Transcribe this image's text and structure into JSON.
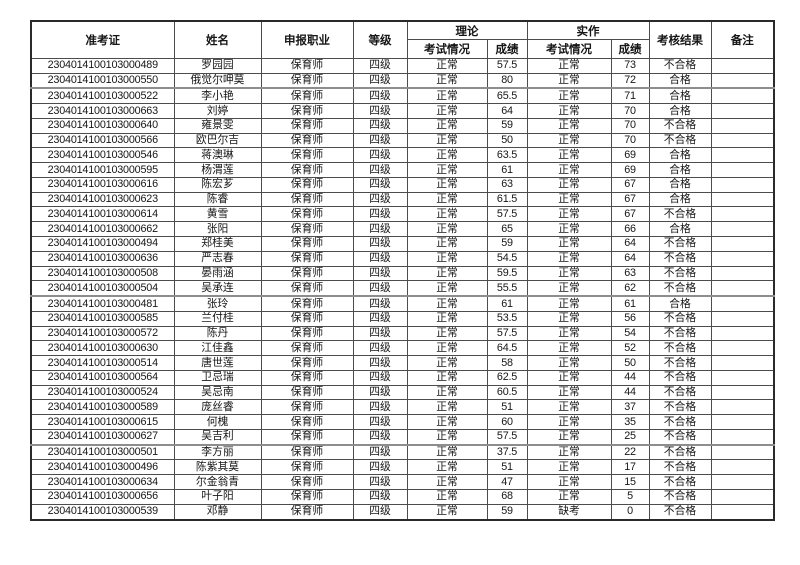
{
  "table": {
    "headers": {
      "admission_no": "准考证",
      "name": "姓名",
      "occupation": "申报职业",
      "level": "等级",
      "theory": "理论",
      "practical": "实作",
      "exam_status": "考试情况",
      "score": "成绩",
      "result": "考核结果",
      "remark": "备注"
    },
    "rows": [
      [
        "2304014100103000489",
        "罗园园",
        "保育师",
        "四级",
        "正常",
        "57.5",
        "正常",
        "73",
        "不合格",
        ""
      ],
      [
        "2304014100103000550",
        "俄觉尔呷莫",
        "保育师",
        "四级",
        "正常",
        "80",
        "正常",
        "72",
        "合格",
        ""
      ],
      [
        "2304014100103000522",
        "李小艳",
        "保育师",
        "四级",
        "正常",
        "65.5",
        "正常",
        "71",
        "合格",
        ""
      ],
      [
        "2304014100103000663",
        "刘婷",
        "保育师",
        "四级",
        "正常",
        "64",
        "正常",
        "70",
        "合格",
        ""
      ],
      [
        "2304014100103000640",
        "雍景雯",
        "保育师",
        "四级",
        "正常",
        "59",
        "正常",
        "70",
        "不合格",
        ""
      ],
      [
        "2304014100103000566",
        "欧巴尔吉",
        "保育师",
        "四级",
        "正常",
        "50",
        "正常",
        "70",
        "不合格",
        ""
      ],
      [
        "2304014100103000546",
        "蒋澳琳",
        "保育师",
        "四级",
        "正常",
        "63.5",
        "正常",
        "69",
        "合格",
        ""
      ],
      [
        "2304014100103000595",
        "杨渭莲",
        "保育师",
        "四级",
        "正常",
        "61",
        "正常",
        "69",
        "合格",
        ""
      ],
      [
        "2304014100103000616",
        "陈宏芗",
        "保育师",
        "四级",
        "正常",
        "63",
        "正常",
        "67",
        "合格",
        ""
      ],
      [
        "2304014100103000623",
        "陈睿",
        "保育师",
        "四级",
        "正常",
        "61.5",
        "正常",
        "67",
        "合格",
        ""
      ],
      [
        "2304014100103000614",
        "黄雪",
        "保育师",
        "四级",
        "正常",
        "57.5",
        "正常",
        "67",
        "不合格",
        ""
      ],
      [
        "2304014100103000662",
        "张阳",
        "保育师",
        "四级",
        "正常",
        "65",
        "正常",
        "66",
        "合格",
        ""
      ],
      [
        "2304014100103000494",
        "郑桂美",
        "保育师",
        "四级",
        "正常",
        "59",
        "正常",
        "64",
        "不合格",
        ""
      ],
      [
        "2304014100103000636",
        "严志春",
        "保育师",
        "四级",
        "正常",
        "54.5",
        "正常",
        "64",
        "不合格",
        ""
      ],
      [
        "2304014100103000508",
        "晏雨涵",
        "保育师",
        "四级",
        "正常",
        "59.5",
        "正常",
        "63",
        "不合格",
        ""
      ],
      [
        "2304014100103000504",
        "吴承连",
        "保育师",
        "四级",
        "正常",
        "55.5",
        "正常",
        "62",
        "不合格",
        ""
      ],
      [
        "2304014100103000481",
        "张玲",
        "保育师",
        "四级",
        "正常",
        "61",
        "正常",
        "61",
        "合格",
        ""
      ],
      [
        "2304014100103000585",
        "兰付桂",
        "保育师",
        "四级",
        "正常",
        "53.5",
        "正常",
        "56",
        "不合格",
        ""
      ],
      [
        "2304014100103000572",
        "陈丹",
        "保育师",
        "四级",
        "正常",
        "57.5",
        "正常",
        "54",
        "不合格",
        ""
      ],
      [
        "2304014100103000630",
        "江佳鑫",
        "保育师",
        "四级",
        "正常",
        "64.5",
        "正常",
        "52",
        "不合格",
        ""
      ],
      [
        "2304014100103000514",
        "唐世莲",
        "保育师",
        "四级",
        "正常",
        "58",
        "正常",
        "50",
        "不合格",
        ""
      ],
      [
        "2304014100103000564",
        "卫忌瑞",
        "保育师",
        "四级",
        "正常",
        "62.5",
        "正常",
        "44",
        "不合格",
        ""
      ],
      [
        "2304014100103000524",
        "吴忌南",
        "保育师",
        "四级",
        "正常",
        "60.5",
        "正常",
        "44",
        "不合格",
        ""
      ],
      [
        "2304014100103000589",
        "庞丝睿",
        "保育师",
        "四级",
        "正常",
        "51",
        "正常",
        "37",
        "不合格",
        ""
      ],
      [
        "2304014100103000615",
        "何槐",
        "保育师",
        "四级",
        "正常",
        "60",
        "正常",
        "35",
        "不合格",
        ""
      ],
      [
        "2304014100103000627",
        "吴吉利",
        "保育师",
        "四级",
        "正常",
        "57.5",
        "正常",
        "25",
        "不合格",
        ""
      ],
      [
        "2304014100103000501",
        "李方丽",
        "保育师",
        "四级",
        "正常",
        "37.5",
        "正常",
        "22",
        "不合格",
        ""
      ],
      [
        "2304014100103000496",
        "陈紫其莫",
        "保育师",
        "四级",
        "正常",
        "51",
        "正常",
        "17",
        "不合格",
        ""
      ],
      [
        "2304014100103000634",
        "尔金翁青",
        "保育师",
        "四级",
        "正常",
        "47",
        "正常",
        "15",
        "不合格",
        ""
      ],
      [
        "2304014100103000656",
        "叶子阳",
        "保育师",
        "四级",
        "正常",
        "68",
        "正常",
        "5",
        "不合格",
        ""
      ],
      [
        "2304014100103000539",
        "邓静",
        "保育师",
        "四级",
        "正常",
        "59",
        "缺考",
        "0",
        "不合格",
        ""
      ]
    ]
  }
}
